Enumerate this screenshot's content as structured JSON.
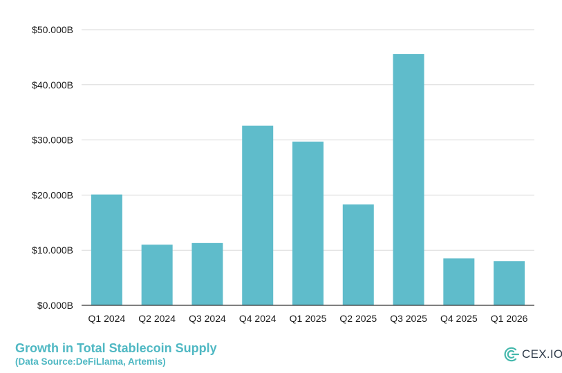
{
  "chart_data": {
    "type": "bar",
    "title": "Growth in Total Stablecoin Supply",
    "subtitle": "(Data Source:DeFiLlama, Artemis)",
    "xlabel": "",
    "ylabel": "",
    "categories": [
      "Q1 2024",
      "Q2 2024",
      "Q3 2024",
      "Q4 2024",
      "Q1 2025",
      "Q2 2025",
      "Q3 2025",
      "Q4 2025",
      "Q1 2026"
    ],
    "values": [
      20.1,
      11.0,
      11.3,
      32.6,
      29.7,
      18.3,
      45.6,
      8.5,
      8.0
    ],
    "unit": "B",
    "ylim": [
      0,
      50
    ],
    "yticks": [
      0,
      10,
      20,
      30,
      40,
      50
    ],
    "ytick_labels": [
      "$0.000B",
      "$10.000B",
      "$20.000B",
      "$30.000B",
      "$40.000B",
      "$50.000B"
    ],
    "grid": true,
    "legend": "none",
    "bar_color": "#5fbccb",
    "grid_color": "#d9d9d9",
    "axis_color": "#333333"
  },
  "caption": {
    "title": "Growth in Total Stablecoin Supply",
    "source": "(Data Source:DeFiLlama, Artemis)",
    "color": "#4fb8c3"
  },
  "brand": {
    "name": "CEX.IO",
    "icon": "cex-io-logo-icon",
    "color": "#44b8ac"
  }
}
